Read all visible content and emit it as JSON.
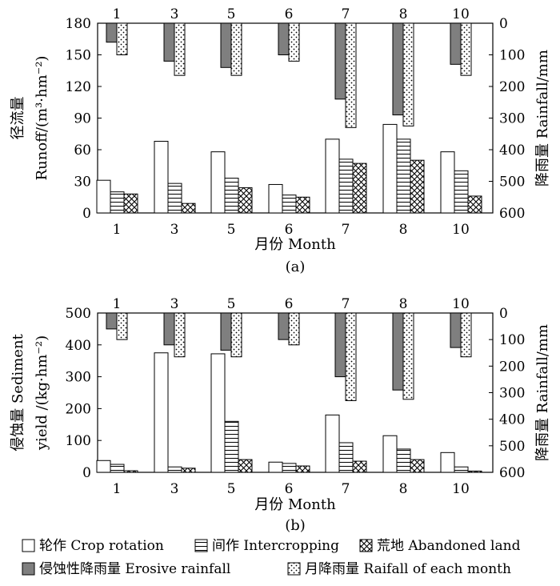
{
  "chart_data": [
    {
      "type": "bar",
      "panel_label": "(a)",
      "categories": [
        "1",
        "3",
        "5",
        "6",
        "7",
        "8",
        "10"
      ],
      "xlabel": "月份 Month",
      "ylabel_cn": "径流量",
      "ylabel_en": "Runoff/(m³·hm⁻²)",
      "ylim": [
        0,
        180
      ],
      "yticks": [
        "0",
        "30",
        "60",
        "90",
        "120",
        "150",
        "180"
      ],
      "series": [
        {
          "name": "轮作 Crop rotation",
          "pattern": "blank",
          "values": [
            31,
            68,
            58,
            27,
            70,
            84,
            58
          ]
        },
        {
          "name": "间作 Intercropping",
          "pattern": "hlines",
          "values": [
            20,
            28,
            33,
            17,
            51,
            70,
            40
          ]
        },
        {
          "name": "荒地 Abandoned land",
          "pattern": "cross",
          "values": [
            18,
            9,
            24,
            15,
            47,
            50,
            16
          ]
        }
      ],
      "rain_axis": {
        "label_cn": "降雨量",
        "label_en": "Rainfall/mm",
        "ylim": [
          0,
          600
        ],
        "yticks": [
          "0",
          "100",
          "200",
          "300",
          "400",
          "500",
          "600"
        ],
        "top_categories": [
          "1",
          "3",
          "5",
          "6",
          "7",
          "8",
          "10"
        ],
        "series": [
          {
            "name": "侵蚀性降雨量 Erosive rainfall",
            "pattern": "gray",
            "values": [
              60,
              120,
              140,
              100,
              240,
              290,
              130
            ]
          },
          {
            "name": "月降雨量 Raifall of each month",
            "pattern": "dots",
            "values": [
              100,
              165,
              165,
              120,
              330,
              325,
              165
            ]
          }
        ]
      }
    },
    {
      "type": "bar",
      "panel_label": "(b)",
      "categories": [
        "1",
        "3",
        "5",
        "6",
        "7",
        "8",
        "10"
      ],
      "xlabel": "月份 Month",
      "ylabel_cn": "侵蚀量 Sediment",
      "ylabel_en": "yield /(kg·hm⁻²)",
      "ylim": [
        0,
        500
      ],
      "yticks": [
        "0",
        "100",
        "200",
        "300",
        "400",
        "500"
      ],
      "series": [
        {
          "name": "轮作 Crop rotation",
          "pattern": "blank",
          "values": [
            37,
            375,
            372,
            32,
            180,
            115,
            62
          ]
        },
        {
          "name": "间作 Intercropping",
          "pattern": "hlines",
          "values": [
            25,
            17,
            160,
            28,
            93,
            73,
            17
          ]
        },
        {
          "name": "荒地 Abandoned land",
          "pattern": "cross",
          "values": [
            5,
            13,
            40,
            20,
            35,
            40,
            4
          ]
        }
      ],
      "rain_axis": {
        "label_cn": "降雨量",
        "label_en": "Rainfall/mm",
        "ylim": [
          0,
          600
        ],
        "yticks": [
          "0",
          "100",
          "200",
          "300",
          "400",
          "500",
          "600"
        ],
        "top_categories": [
          "1",
          "3",
          "5",
          "6",
          "7",
          "8",
          "10"
        ],
        "series": [
          {
            "name": "侵蚀性降雨量 Erosive rainfall",
            "pattern": "gray",
            "values": [
              60,
              120,
              140,
              100,
              240,
              290,
              130
            ]
          },
          {
            "name": "月降雨量 Raifall of each month",
            "pattern": "dots",
            "values": [
              100,
              165,
              165,
              120,
              330,
              325,
              165
            ]
          }
        ]
      }
    }
  ],
  "legend": {
    "items": [
      {
        "label": "轮作 Crop rotation",
        "pattern": "blank"
      },
      {
        "label": "间作 Intercropping",
        "pattern": "hlines"
      },
      {
        "label": "荒地 Abandoned land",
        "pattern": "cross"
      },
      {
        "label": "侵蚀性降雨量 Erosive rainfall",
        "pattern": "gray"
      },
      {
        "label": "月降雨量 Raifall of each month",
        "pattern": "dots"
      }
    ]
  },
  "colors": {
    "gray": "#7f7f7f",
    "ink": "#000000",
    "paper": "#ffffff"
  }
}
